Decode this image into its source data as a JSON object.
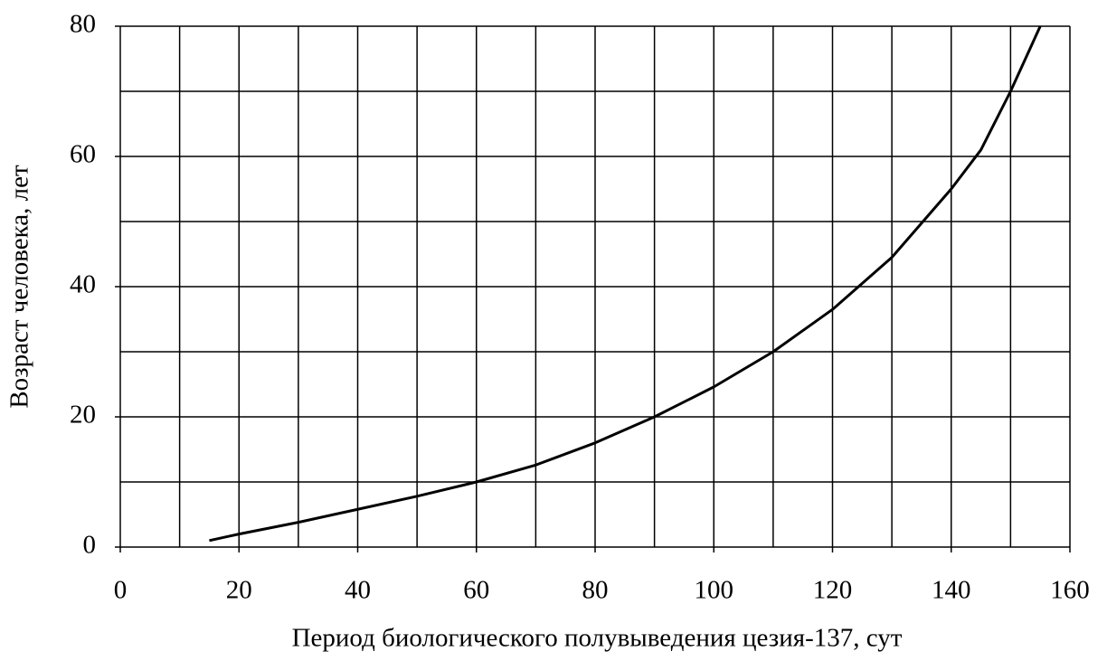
{
  "chart_data": {
    "type": "line",
    "x_label": "Период биологического полувыведения цезия-137, сут",
    "y_label": "Возраст человека, лет",
    "x": [
      15,
      20,
      30,
      40,
      50,
      60,
      70,
      80,
      90,
      100,
      110,
      120,
      130,
      140,
      145,
      150,
      155
    ],
    "series": [
      {
        "color": "#000000",
        "values": [
          1,
          2,
          3.8,
          5.8,
          7.8,
          10,
          12.6,
          16,
          20,
          24.6,
          30,
          36.5,
          44.5,
          55,
          61,
          70,
          80
        ]
      }
    ],
    "xlim": [
      0,
      160
    ],
    "xticks": [
      0,
      20,
      40,
      60,
      80,
      100,
      120,
      140,
      160
    ],
    "xminorticks": [
      10,
      30,
      50,
      70,
      90,
      110,
      130,
      150
    ],
    "ylim": [
      0,
      80
    ],
    "yticks": [
      0,
      20,
      40,
      60,
      80
    ],
    "yminorticks": [
      10,
      30,
      50,
      70
    ],
    "grid": true
  }
}
